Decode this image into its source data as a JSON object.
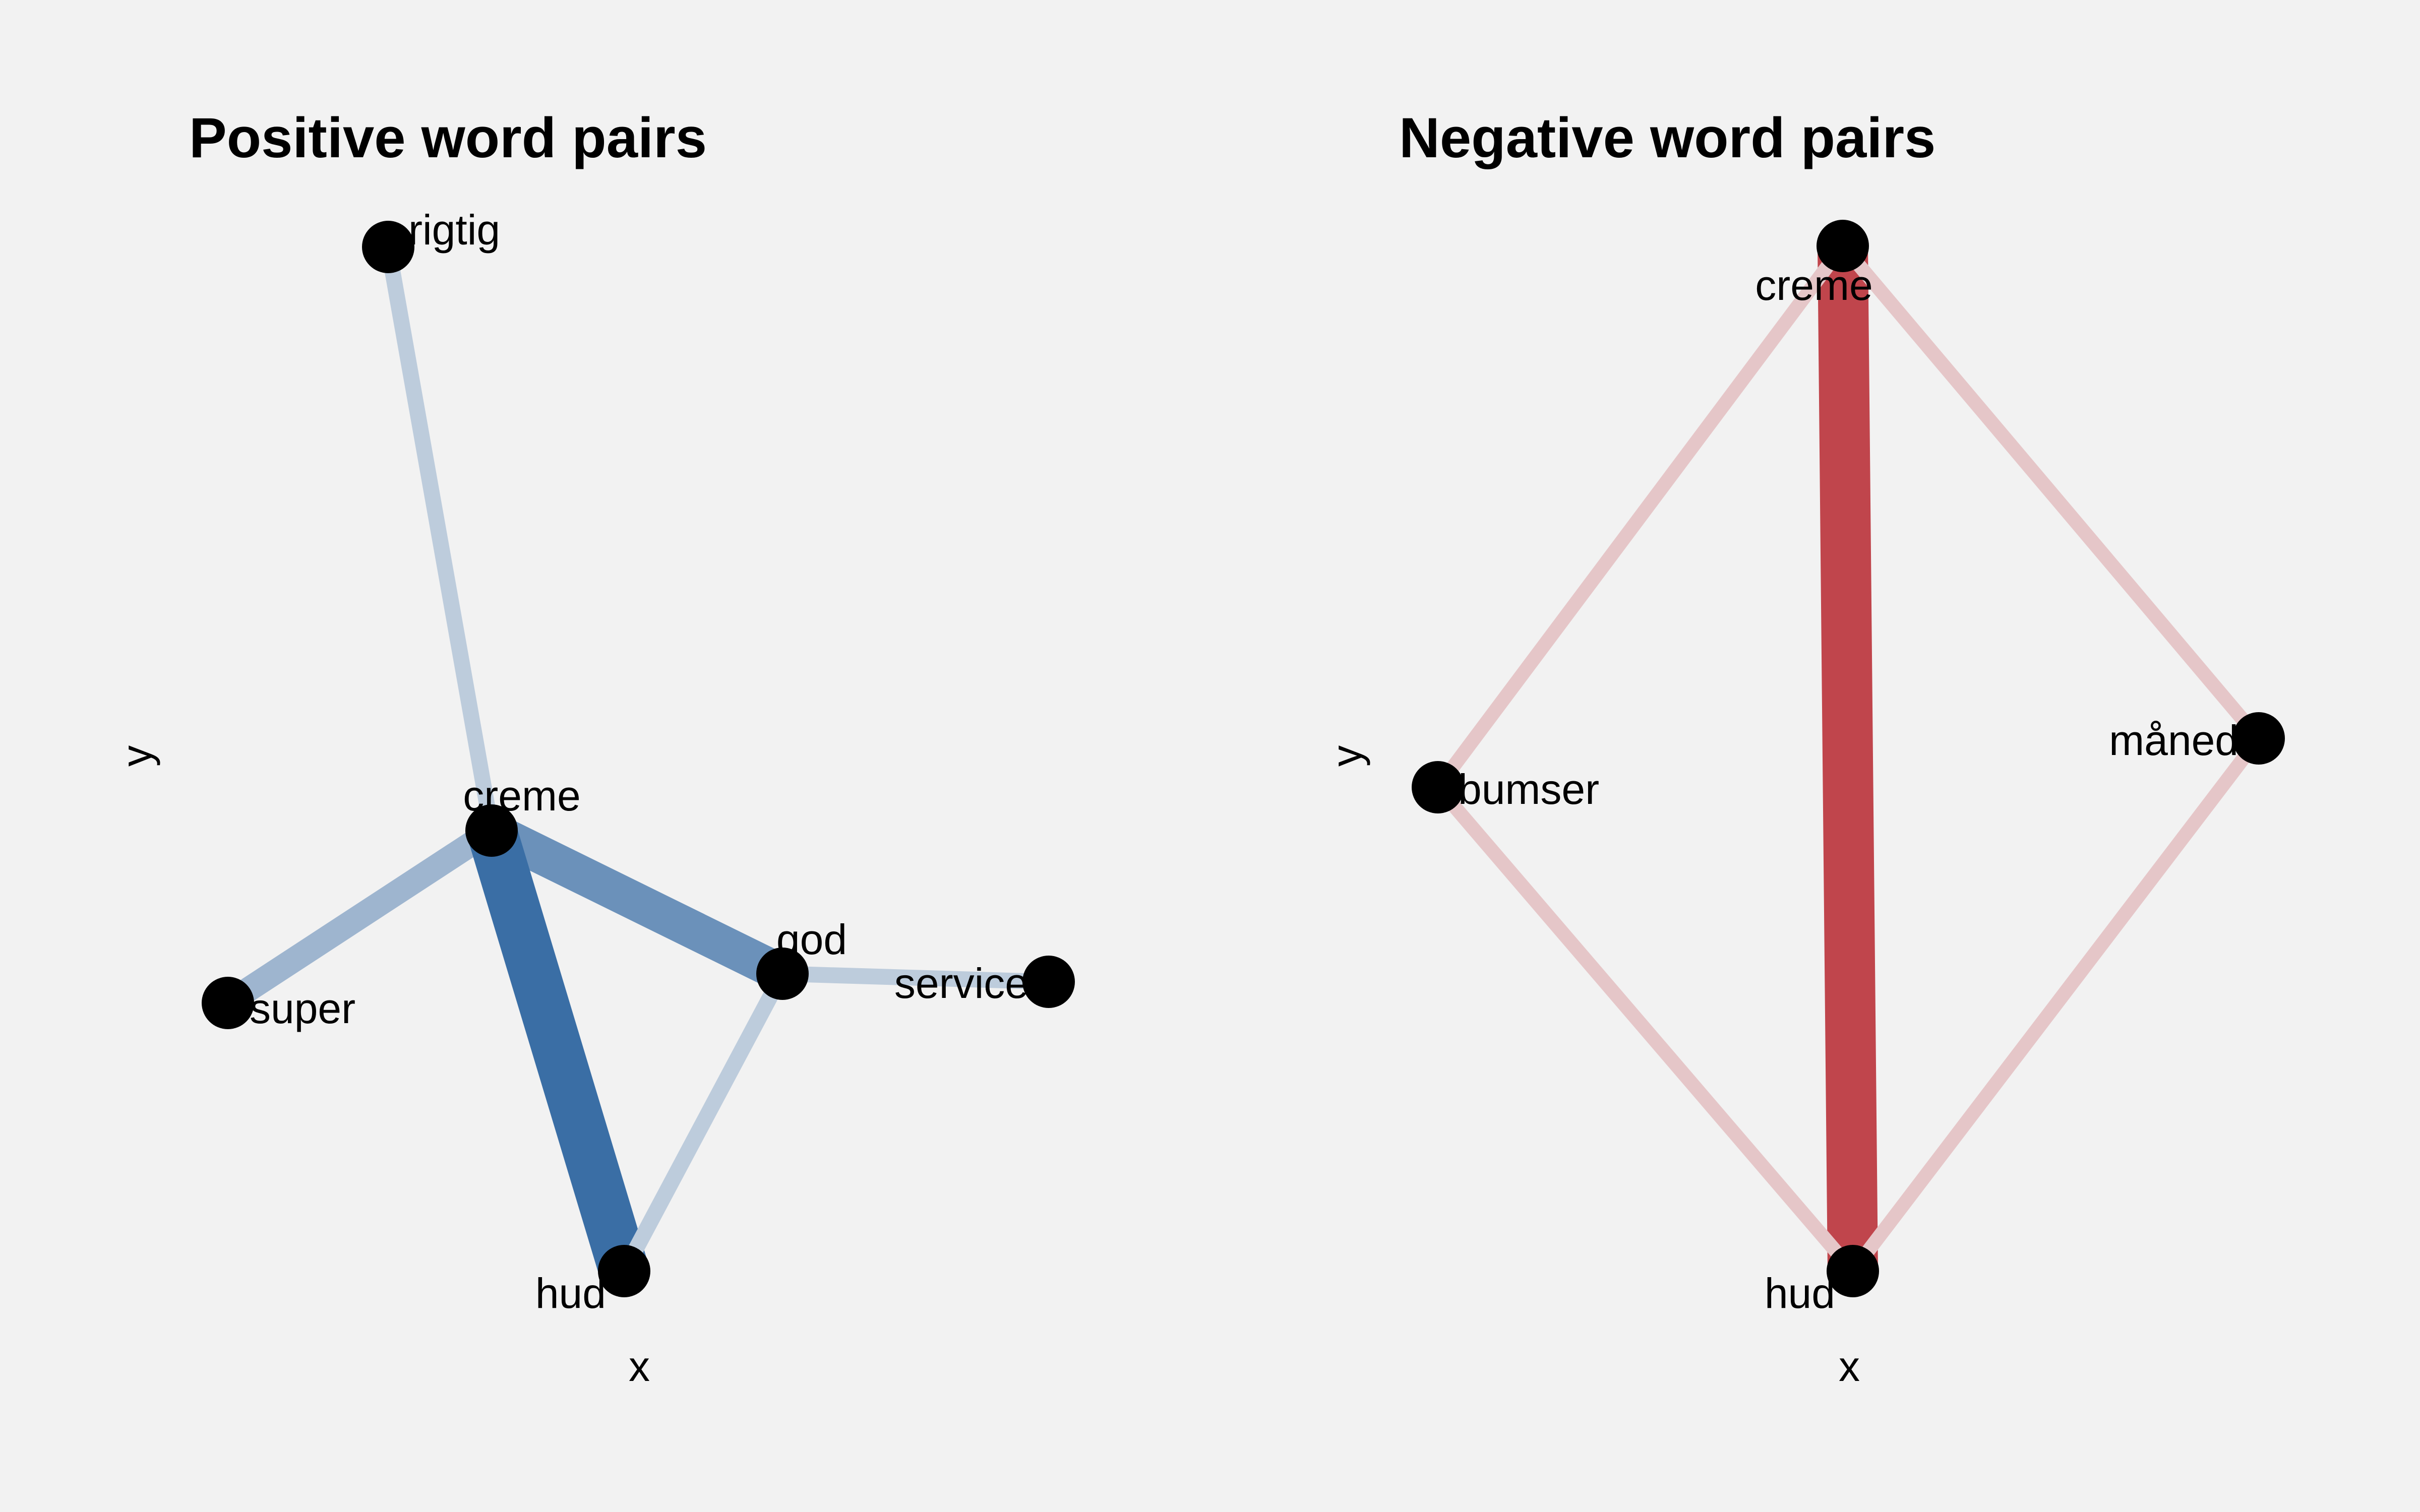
{
  "colors": {
    "background": "#f2f2f2",
    "positive_edge": "#3a6ea5",
    "negative_edge": "#c0454c",
    "node": "#000000",
    "text": "#000000"
  },
  "panels": [
    {
      "id": "positive",
      "title": "Positive word pairs",
      "xlabel": "x",
      "ylabel": "y",
      "edge_color": "#3a6ea5",
      "nodes": [
        {
          "id": "rigtig",
          "label": "rigtig"
        },
        {
          "id": "creme",
          "label": "creme"
        },
        {
          "id": "super",
          "label": "super"
        },
        {
          "id": "god",
          "label": "god"
        },
        {
          "id": "service",
          "label": "service"
        },
        {
          "id": "hud",
          "label": "hud"
        }
      ],
      "edges": [
        {
          "source": "rigtig",
          "target": "creme",
          "weight": 0.22
        },
        {
          "source": "creme",
          "target": "super",
          "weight": 0.42
        },
        {
          "source": "creme",
          "target": "god",
          "weight": 0.72
        },
        {
          "source": "creme",
          "target": "hud",
          "weight": 1.0
        },
        {
          "source": "god",
          "target": "service",
          "weight": 0.22
        },
        {
          "source": "god",
          "target": "hud",
          "weight": 0.22
        }
      ]
    },
    {
      "id": "negative",
      "title": "Negative word pairs",
      "xlabel": "x",
      "ylabel": "y",
      "edge_color": "#c0454c",
      "nodes": [
        {
          "id": "creme",
          "label": "creme"
        },
        {
          "id": "bumser",
          "label": "bumser"
        },
        {
          "id": "måned",
          "label": "måned"
        },
        {
          "id": "hud",
          "label": "hud"
        }
      ],
      "edges": [
        {
          "source": "creme",
          "target": "hud",
          "weight": 1.0
        },
        {
          "source": "creme",
          "target": "bumser",
          "weight": 0.18
        },
        {
          "source": "creme",
          "target": "måned",
          "weight": 0.18
        },
        {
          "source": "bumser",
          "target": "hud",
          "weight": 0.18
        },
        {
          "source": "måned",
          "target": "hud",
          "weight": 0.18
        }
      ]
    }
  ]
}
